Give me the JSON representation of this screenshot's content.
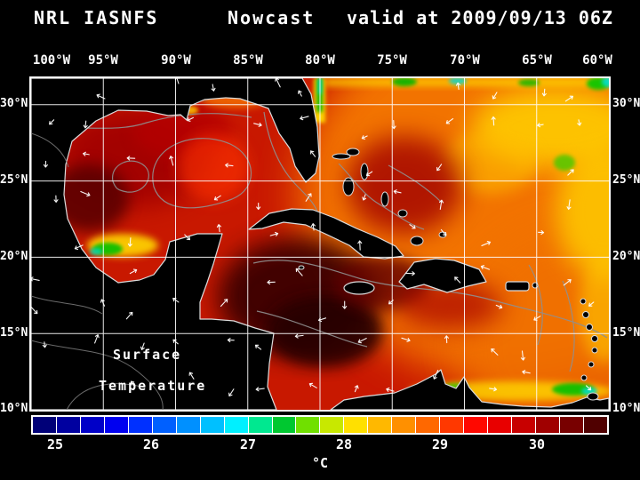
{
  "header": {
    "model": "NRL IASNFS",
    "product": "Nowcast",
    "valid": "valid at 2009/09/13 06Z"
  },
  "map": {
    "lon_ticks": [
      "100°W",
      "95°W",
      "90°W",
      "85°W",
      "80°W",
      "75°W",
      "70°W",
      "65°W",
      "60°W"
    ],
    "lat_ticks": [
      "30°N",
      "25°N",
      "20°N",
      "15°N",
      "10°N"
    ],
    "annotation": {
      "line1": "Surface",
      "line2": "Temperature"
    }
  },
  "colorbar": {
    "unit": "°C",
    "ticks": [
      "25",
      "26",
      "27",
      "28",
      "29",
      "30"
    ],
    "colors": [
      "#000078",
      "#0000A0",
      "#0000C8",
      "#0000F0",
      "#0030FF",
      "#0060FF",
      "#0090FF",
      "#00C0FF",
      "#00F0FF",
      "#00E890",
      "#00C830",
      "#70E000",
      "#C8E800",
      "#FFE000",
      "#FFB800",
      "#FF9000",
      "#FF6800",
      "#FF3800",
      "#FF0800",
      "#E80000",
      "#C80000",
      "#A00000",
      "#780000",
      "#500000"
    ]
  }
}
